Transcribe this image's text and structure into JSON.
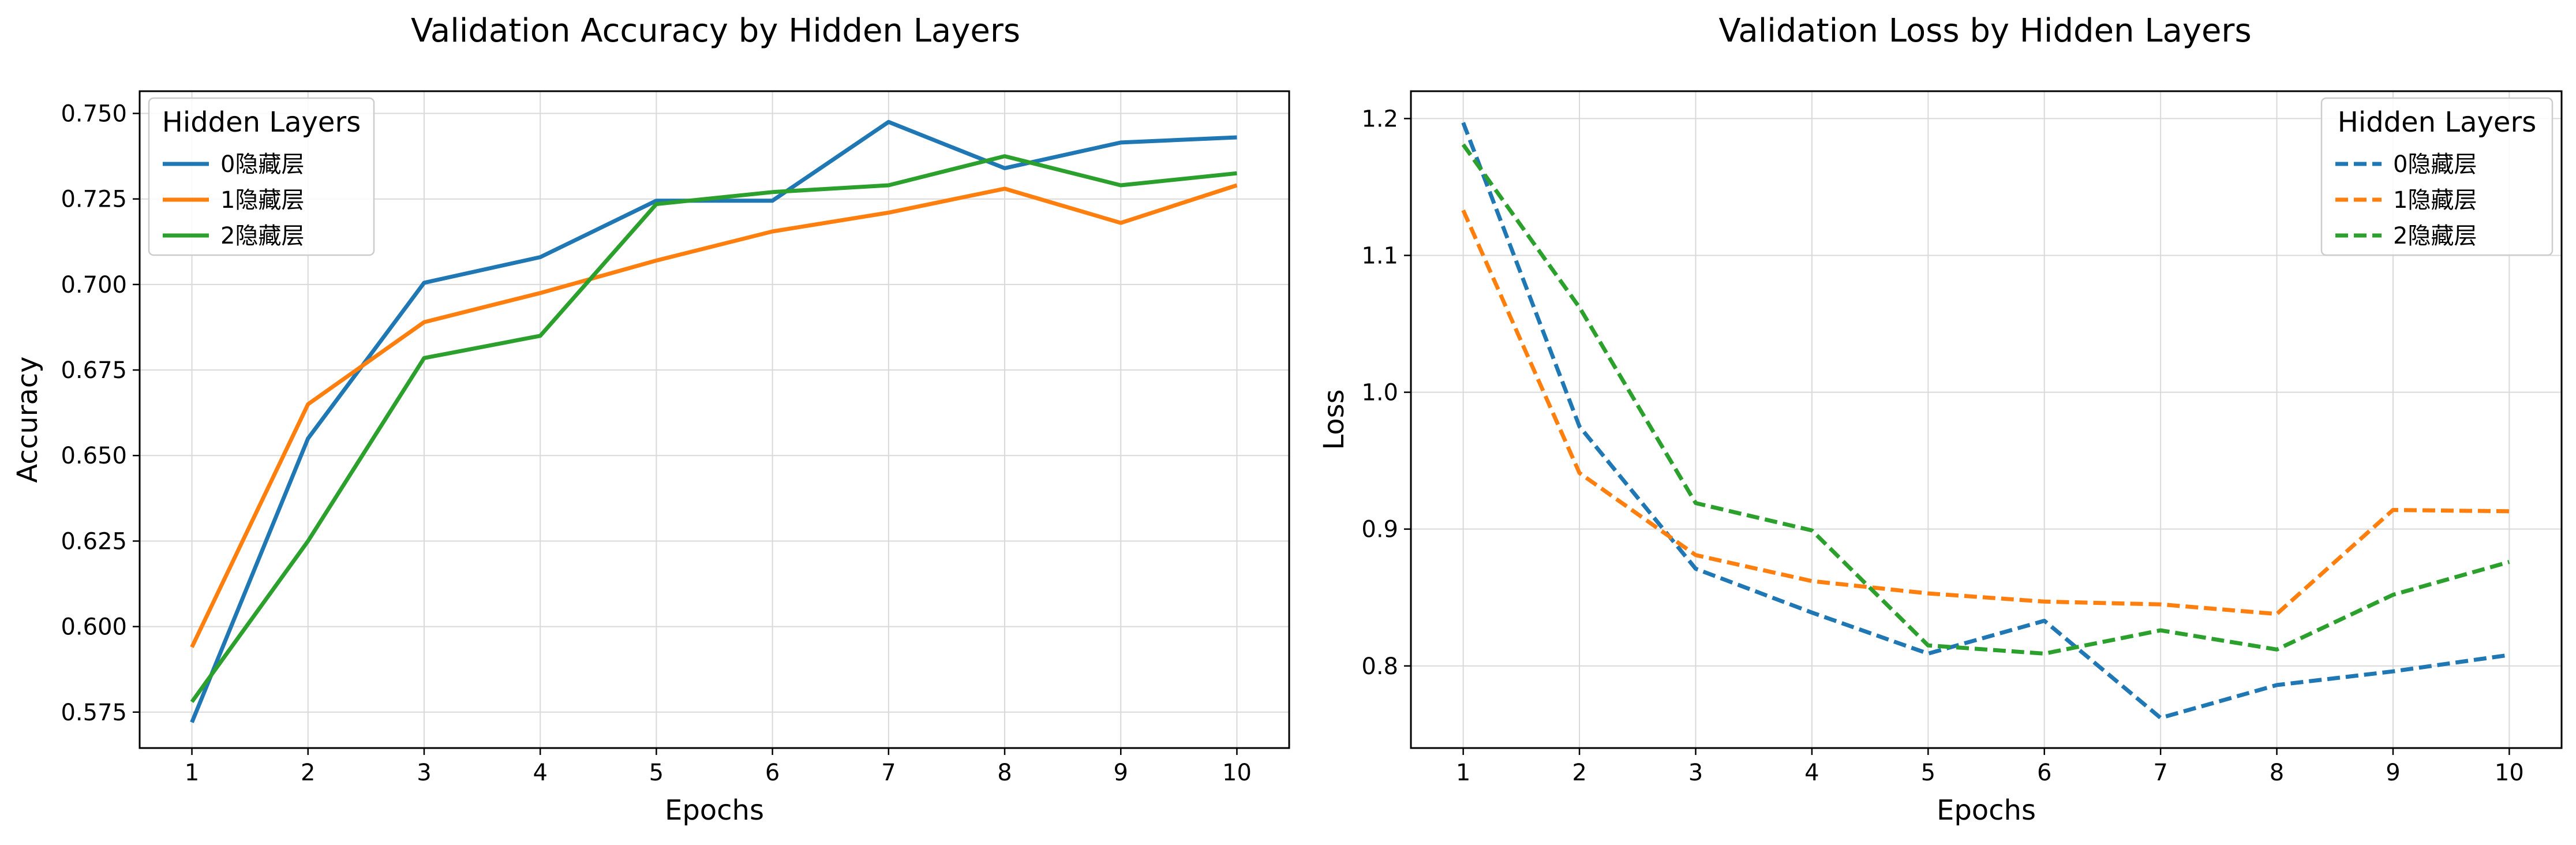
{
  "chart_data": [
    {
      "type": "line",
      "title": "Validation Accuracy by Hidden Layers",
      "xlabel": "Epochs",
      "ylabel": "Accuracy",
      "x": [
        1,
        2,
        3,
        4,
        5,
        6,
        7,
        8,
        9,
        10
      ],
      "xlim": [
        0.55,
        10.45
      ],
      "ylim": [
        0.5645,
        0.7565
      ],
      "yticks": [
        0.575,
        0.6,
        0.625,
        0.65,
        0.675,
        0.7,
        0.725,
        0.75
      ],
      "ytick_labels": [
        "0.575",
        "0.600",
        "0.625",
        "0.650",
        "0.675",
        "0.700",
        "0.725",
        "0.750"
      ],
      "grid": true,
      "line_style": "solid",
      "legend": {
        "title": "Hidden Layers",
        "placement": "top-left"
      },
      "series": [
        {
          "name": "0隐藏层",
          "color": "#1f77b4",
          "values": [
            0.572,
            0.655,
            0.7005,
            0.708,
            0.7245,
            0.7245,
            0.7475,
            0.734,
            0.7415,
            0.743
          ]
        },
        {
          "name": "1隐藏层",
          "color": "#ff7f0e",
          "values": [
            0.594,
            0.665,
            0.689,
            0.6975,
            0.707,
            0.7155,
            0.721,
            0.728,
            0.718,
            0.729
          ]
        },
        {
          "name": "2隐藏层",
          "color": "#2ca02c",
          "values": [
            0.578,
            0.625,
            0.6785,
            0.685,
            0.7235,
            0.727,
            0.729,
            0.7375,
            0.729,
            0.7325
          ]
        }
      ]
    },
    {
      "type": "line",
      "title": "Validation Loss by Hidden Layers",
      "xlabel": "Epochs",
      "ylabel": "Loss",
      "x": [
        1,
        2,
        3,
        4,
        5,
        6,
        7,
        8,
        9,
        10
      ],
      "xlim": [
        0.55,
        10.45
      ],
      "ylim": [
        0.74,
        1.22
      ],
      "yticks": [
        0.8,
        0.9,
        1.0,
        1.1,
        1.2
      ],
      "ytick_labels": [
        "0.8",
        "0.9",
        "1.0",
        "1.1",
        "1.2"
      ],
      "grid": true,
      "line_style": "dashed",
      "legend": {
        "title": "Hidden Layers",
        "placement": "top-right"
      },
      "series": [
        {
          "name": "0隐藏层",
          "color": "#1f77b4",
          "values": [
            1.197,
            0.975,
            0.871,
            0.839,
            0.809,
            0.833,
            0.762,
            0.786,
            0.796,
            0.808
          ]
        },
        {
          "name": "1隐藏层",
          "color": "#ff7f0e",
          "values": [
            1.133,
            0.941,
            0.881,
            0.862,
            0.853,
            0.847,
            0.845,
            0.838,
            0.914,
            0.913
          ]
        },
        {
          "name": "2隐藏层",
          "color": "#2ca02c",
          "values": [
            1.181,
            1.062,
            0.919,
            0.899,
            0.815,
            0.809,
            0.826,
            0.812,
            0.852,
            0.876
          ]
        }
      ]
    }
  ]
}
